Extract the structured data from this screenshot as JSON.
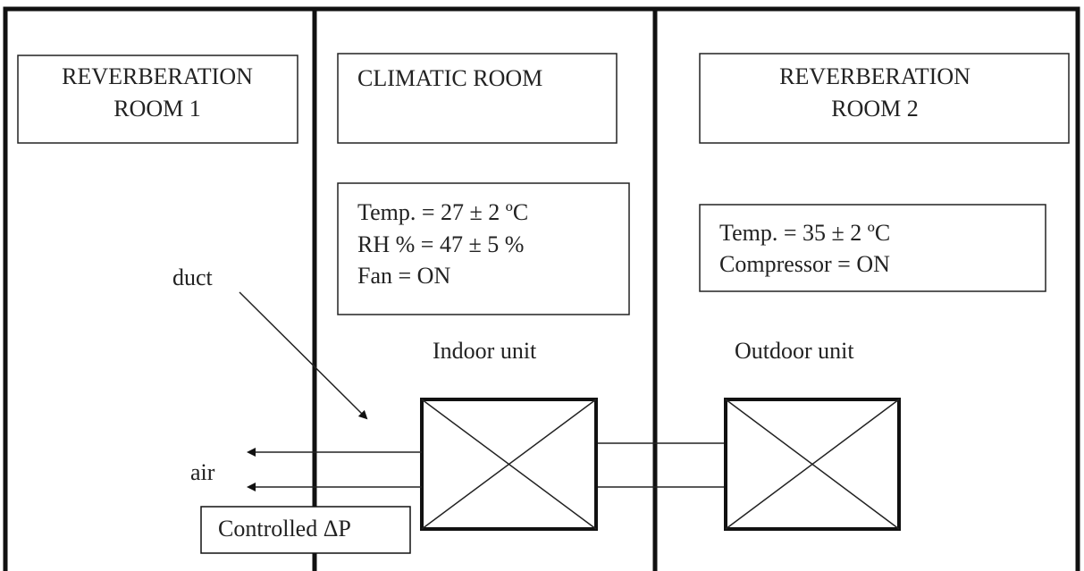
{
  "rooms": [
    {
      "title": [
        "REVERBERATION",
        "ROOM 1"
      ]
    },
    {
      "title": [
        "CLIMATIC ROOM"
      ],
      "conditions": [
        "Temp. = 27 ± 2 ºC",
        "RH % = 47 ± 5 %",
        "Fan = ON"
      ],
      "unit": "Indoor unit"
    },
    {
      "title": [
        "REVERBERATION",
        "ROOM 2"
      ],
      "conditions": [
        "Temp. = 35 ± 2 ºC",
        "Compressor = ON"
      ],
      "unit": "Outdoor unit"
    }
  ],
  "labels": {
    "duct": "duct",
    "air": "air",
    "pressure": "Controlled ΔP"
  }
}
